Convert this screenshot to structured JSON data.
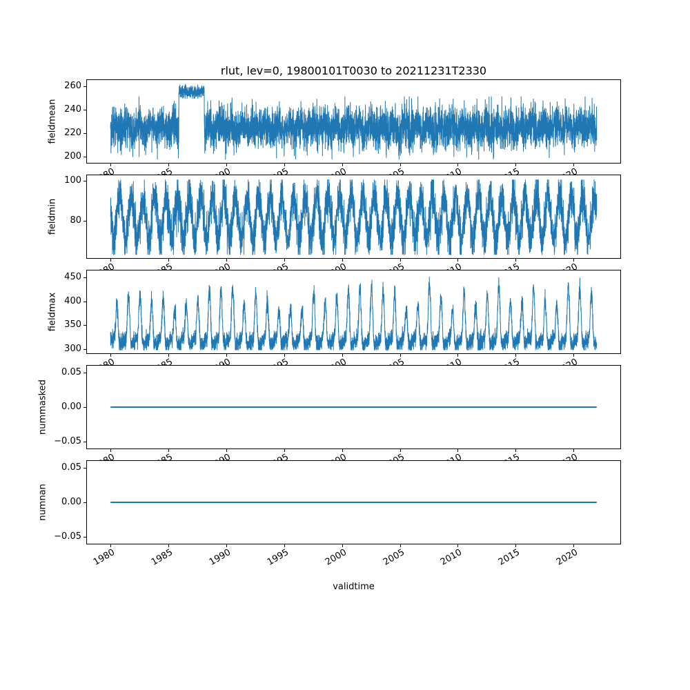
{
  "figure": {
    "title": "rlut, lev=0, 19800101T0030 to 20211231T2330",
    "xlabel": "validtime"
  },
  "x_axis": {
    "label": "validtime",
    "xlim": [
      1977.9,
      2024.1
    ],
    "ticks": [
      {
        "v": 1980,
        "label": "1980"
      },
      {
        "v": 1985,
        "label": "1985"
      },
      {
        "v": 1990,
        "label": "1990"
      },
      {
        "v": 1995,
        "label": "1995"
      },
      {
        "v": 2000,
        "label": "2000"
      },
      {
        "v": 2005,
        "label": "2005"
      },
      {
        "v": 2010,
        "label": "2010"
      },
      {
        "v": 2015,
        "label": "2015"
      },
      {
        "v": 2020,
        "label": "2020"
      }
    ]
  },
  "chart_data": [
    {
      "type": "line",
      "name": "fieldmean",
      "ylabel": "fieldmean",
      "xlim": [
        1977.9,
        2024.1
      ],
      "ylim": [
        194,
        266
      ],
      "yticks": [
        {
          "v": 200,
          "label": "200"
        },
        {
          "v": 220,
          "label": "220"
        },
        {
          "v": 240,
          "label": "240"
        },
        {
          "v": 260,
          "label": "260"
        }
      ],
      "series": [
        {
          "name": "fieldmean",
          "color": "#1f77b4",
          "summary": "Dense noisy series oscillating ~200-252, with an anomalous elevated block ~250-262 from mid-1986 to early 1988",
          "synthesis": {
            "kind": "noisy",
            "x_start": 1980.0,
            "x_end": 2022.0,
            "n": 6000,
            "baseline": 224.5,
            "seasonal_amp": 3.5,
            "seasonal_phase": 0.2,
            "noise_sd": 8.5,
            "clip_min": 197.5,
            "clip_max": 251.5,
            "anomaly_start": 1985.9,
            "anomaly_end": 1988.1,
            "anomaly_baseline": 255.5,
            "anomaly_noise_sd": 2.6,
            "anomaly_clip_min": 249.5,
            "anomaly_clip_max": 262
          }
        }
      ]
    },
    {
      "type": "line",
      "name": "fieldmin",
      "ylabel": "fieldmin",
      "xlim": [
        1977.9,
        2024.1
      ],
      "ylim": [
        61,
        103
      ],
      "yticks": [
        {
          "v": 80,
          "label": "80"
        },
        {
          "v": 100,
          "label": "100"
        }
      ],
      "series": [
        {
          "name": "fieldmin",
          "color": "#1f77b4",
          "summary": "Dense noisy series with annual oscillation spanning ~63-100",
          "synthesis": {
            "kind": "noisy",
            "x_start": 1980.0,
            "x_end": 2022.0,
            "n": 6000,
            "baseline": 81.5,
            "seasonal_amp": 11,
            "seasonal_phase": 0.55,
            "noise_sd": 5,
            "clip_min": 63,
            "clip_max": 100.5
          }
        }
      ]
    },
    {
      "type": "line",
      "name": "fieldmax",
      "ylabel": "fieldmax",
      "xlim": [
        1977.9,
        2024.1
      ],
      "ylim": [
        290,
        466
      ],
      "yticks": [
        {
          "v": 300,
          "label": "300"
        },
        {
          "v": 350,
          "label": "350"
        },
        {
          "v": 400,
          "label": "400"
        },
        {
          "v": 450,
          "label": "450"
        }
      ],
      "series": [
        {
          "name": "fieldmax",
          "color": "#1f77b4",
          "summary": "Dense noisy band ~300-345 with annual spikes reaching ~400-455",
          "synthesis": {
            "kind": "noisy",
            "x_start": 1980.0,
            "x_end": 2022.0,
            "n": 6000,
            "baseline": 316,
            "seasonal_amp": 6,
            "seasonal_phase": 0.1,
            "noise_sd": 9,
            "clip_min": 298,
            "clip_max": 458,
            "peak_amp_base": 60,
            "peak_amp_rand": 60,
            "peak_power": 2.5,
            "peak_phase": 0.3
          }
        }
      ]
    },
    {
      "type": "line",
      "name": "nummasked",
      "ylabel": "nummasked",
      "xlim": [
        1977.9,
        2024.1
      ],
      "ylim": [
        -0.0605,
        0.0605
      ],
      "yticks": [
        {
          "v": -0.05,
          "label": "−0.05"
        },
        {
          "v": 0.0,
          "label": "0.00"
        },
        {
          "v": 0.05,
          "label": "0.05"
        }
      ],
      "series": [
        {
          "name": "nummasked",
          "color": "#1f77b4",
          "summary": "Constant zero over the full period",
          "synthesis": {
            "kind": "constant",
            "x_start": 1980.0,
            "x_end": 2022.0,
            "value": 0
          }
        }
      ]
    },
    {
      "type": "line",
      "name": "numnan",
      "ylabel": "numnan",
      "xlim": [
        1977.9,
        2024.1
      ],
      "ylim": [
        -0.0605,
        0.0605
      ],
      "yticks": [
        {
          "v": -0.05,
          "label": "−0.05"
        },
        {
          "v": 0.0,
          "label": "0.00"
        },
        {
          "v": 0.05,
          "label": "0.05"
        }
      ],
      "series": [
        {
          "name": "numnan",
          "color": "#1f77b4",
          "summary": "Constant zero over the full period",
          "synthesis": {
            "kind": "constant",
            "x_start": 1980.0,
            "x_end": 2022.0,
            "value": 0
          }
        }
      ]
    }
  ]
}
